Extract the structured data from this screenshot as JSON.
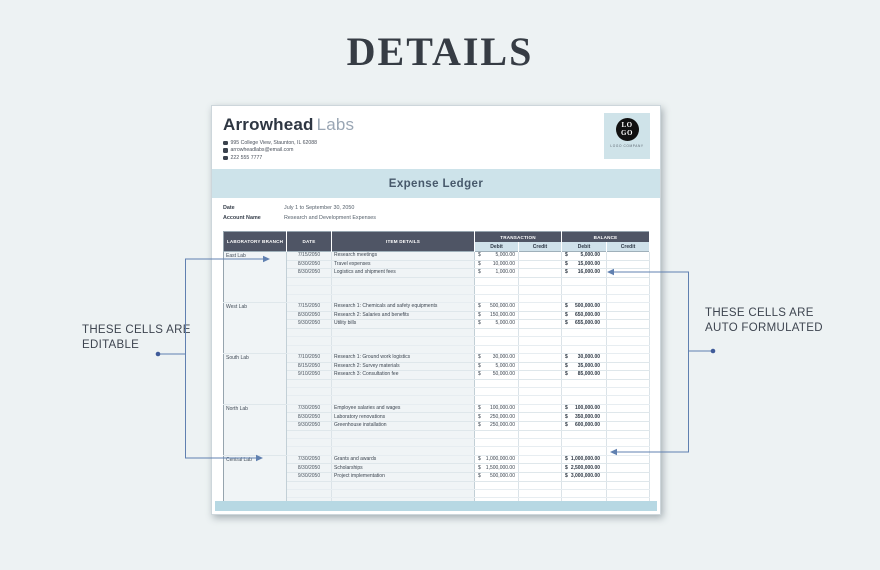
{
  "page_title": "DETAILS",
  "annotations": {
    "left": {
      "lines": [
        "THESE CELLS ARE",
        "EDITABLE"
      ]
    },
    "right": {
      "lines": [
        "THESE CELLS ARE",
        "AUTO FORMULATED"
      ]
    }
  },
  "sheet": {
    "company": {
      "name_primary": "Arrowhead",
      "name_secondary": "Labs",
      "address": "995 College View, Staunton, IL 62088",
      "email": "arrowheadlabs@email.com",
      "phone": "222 555 7777"
    },
    "logo": {
      "top": "LO",
      "bottom": "GO",
      "caption": "LOGO COMPANY"
    },
    "banner": "Expense Ledger",
    "meta": {
      "date_label": "Date",
      "date_value": "July 1 to September 30, 2050",
      "account_label": "Account Name",
      "account_value": "Research and Development Expenses"
    },
    "table": {
      "col_branch": "LABORATORY BRANCH",
      "col_date": "DATE",
      "col_item": "ITEM DETAILS",
      "group_transaction": "TRANSACTION",
      "group_balance": "BALANCE",
      "sub_debit": "Debit",
      "sub_credit": "Credit",
      "currency": "$",
      "groups": [
        {
          "branch": "East Lab",
          "rows": [
            {
              "date": "7/15/2050",
              "item": "Research meetings",
              "debit": "5,000.00",
              "balance": "5,000.00"
            },
            {
              "date": "8/30/2050",
              "item": "Travel expenses",
              "debit": "10,000.00",
              "balance": "15,000.00"
            },
            {
              "date": "8/30/2050",
              "item": "Logistics and shipment fees",
              "debit": "1,000.00",
              "balance": "16,000.00"
            }
          ]
        },
        {
          "branch": "West Lab",
          "rows": [
            {
              "date": "7/15/2050",
              "item": "Research 1: Chemicals and safety equipments",
              "debit": "500,000.00",
              "balance": "500,000.00"
            },
            {
              "date": "8/30/2050",
              "item": "Research 2: Salaries and benefits",
              "debit": "150,000.00",
              "balance": "650,000.00"
            },
            {
              "date": "9/30/2050",
              "item": "Utility bills",
              "debit": "5,000.00",
              "balance": "655,000.00"
            }
          ]
        },
        {
          "branch": "South Lab",
          "rows": [
            {
              "date": "7/10/2050",
              "item": "Research 1: Ground work logistics",
              "debit": "30,000.00",
              "balance": "30,000.00"
            },
            {
              "date": "8/15/2050",
              "item": "Research 2: Survey materials",
              "debit": "5,000.00",
              "balance": "35,000.00"
            },
            {
              "date": "9/10/2050",
              "item": "Research 3: Consultation fee",
              "debit": "50,000.00",
              "balance": "85,000.00"
            }
          ]
        },
        {
          "branch": "North Lab",
          "rows": [
            {
              "date": "7/30/2050",
              "item": "Employee salaries and wages",
              "debit": "100,000.00",
              "balance": "100,000.00"
            },
            {
              "date": "8/30/2050",
              "item": "Laboratory renovations",
              "debit": "250,000.00",
              "balance": "350,000.00"
            },
            {
              "date": "9/30/2050",
              "item": "Greenhouse installation",
              "debit": "250,000.00",
              "balance": "600,000.00"
            }
          ]
        },
        {
          "branch": "Central Lab",
          "rows": [
            {
              "date": "7/30/2050",
              "item": "Grants and awards",
              "debit": "1,000,000.00",
              "balance": "1,000,000.00"
            },
            {
              "date": "8/30/2050",
              "item": "Scholarships",
              "debit": "1,500,000.00",
              "balance": "2,500,000.00"
            },
            {
              "date": "9/30/2050",
              "item": "Project implementation",
              "debit": "500,000.00",
              "balance": "3,000,000.00"
            }
          ]
        }
      ]
    }
  },
  "colors": {
    "background": "#edf2f3",
    "banner_blue": "#cde3ea",
    "header_dark": "#4f5565",
    "subheader_blue": "#cfe1ea",
    "footer_blue": "#b7d8e3",
    "connector": "#6080b0",
    "connector_dot": "#3f5b99"
  }
}
